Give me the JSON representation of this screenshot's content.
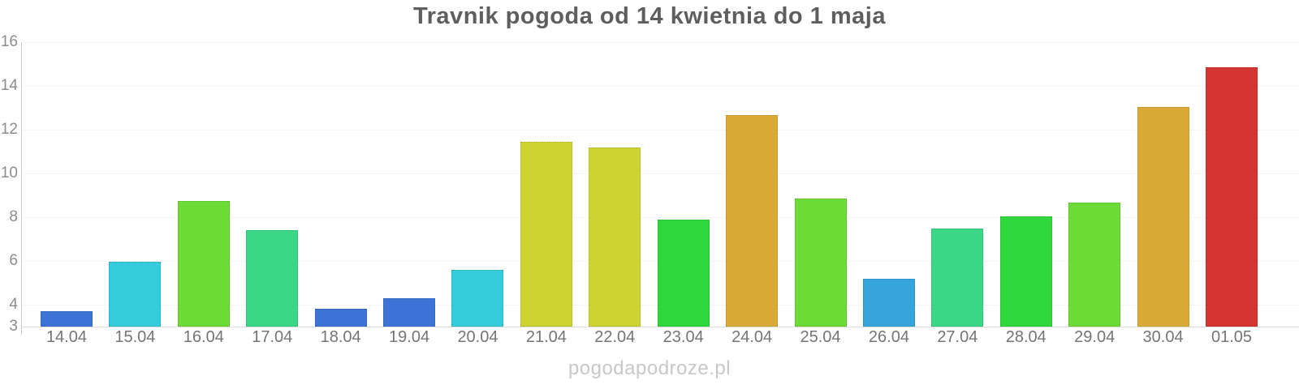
{
  "title": "Travnik pogoda od 14 kwietnia do 1 maja",
  "watermark": "pogodapodroze.pl",
  "chart_data": {
    "type": "bar",
    "title": "Travnik pogoda od 14 kwietnia do 1 maja",
    "xlabel": "",
    "ylabel": "",
    "categories": [
      "14.04",
      "15.04",
      "16.04",
      "17.04",
      "18.04",
      "19.04",
      "20.04",
      "21.04",
      "22.04",
      "23.04",
      "24.04",
      "25.04",
      "26.04",
      "27.04",
      "28.04",
      "29.04",
      "30.04",
      "01.05"
    ],
    "values": [
      3.7,
      5.95,
      8.75,
      7.4,
      3.8,
      4.3,
      5.6,
      11.45,
      11.2,
      7.9,
      12.65,
      8.85,
      5.2,
      7.5,
      8.05,
      8.65,
      13.05,
      14.85
    ],
    "bar_colors": [
      "#3d72d6",
      "#34cbdd",
      "#6cdb35",
      "#3bd786",
      "#3d72d6",
      "#3d72d6",
      "#34cbdd",
      "#cdd32f",
      "#cdd32f",
      "#2fd63c",
      "#dba936",
      "#6cdb35",
      "#36a5dc",
      "#3bd786",
      "#2fd63c",
      "#6cdb35",
      "#dba936",
      "#d63333"
    ],
    "ylim": [
      3,
      16
    ],
    "yticks": [
      3,
      4,
      6,
      8,
      10,
      12,
      14,
      16
    ],
    "baseline_value": 3,
    "grid": "horizontal",
    "legend": "none"
  },
  "style": {
    "title_color": "#5e5e5e",
    "y_label_color": "#8c8c8c",
    "x_label_color": "#757575",
    "gridline_color": "#ececec",
    "baseline_color": "#dcdcdc",
    "v_axis_color": "#cccccc",
    "watermark_color": "#c8c8c8",
    "background": "#ffffff"
  }
}
